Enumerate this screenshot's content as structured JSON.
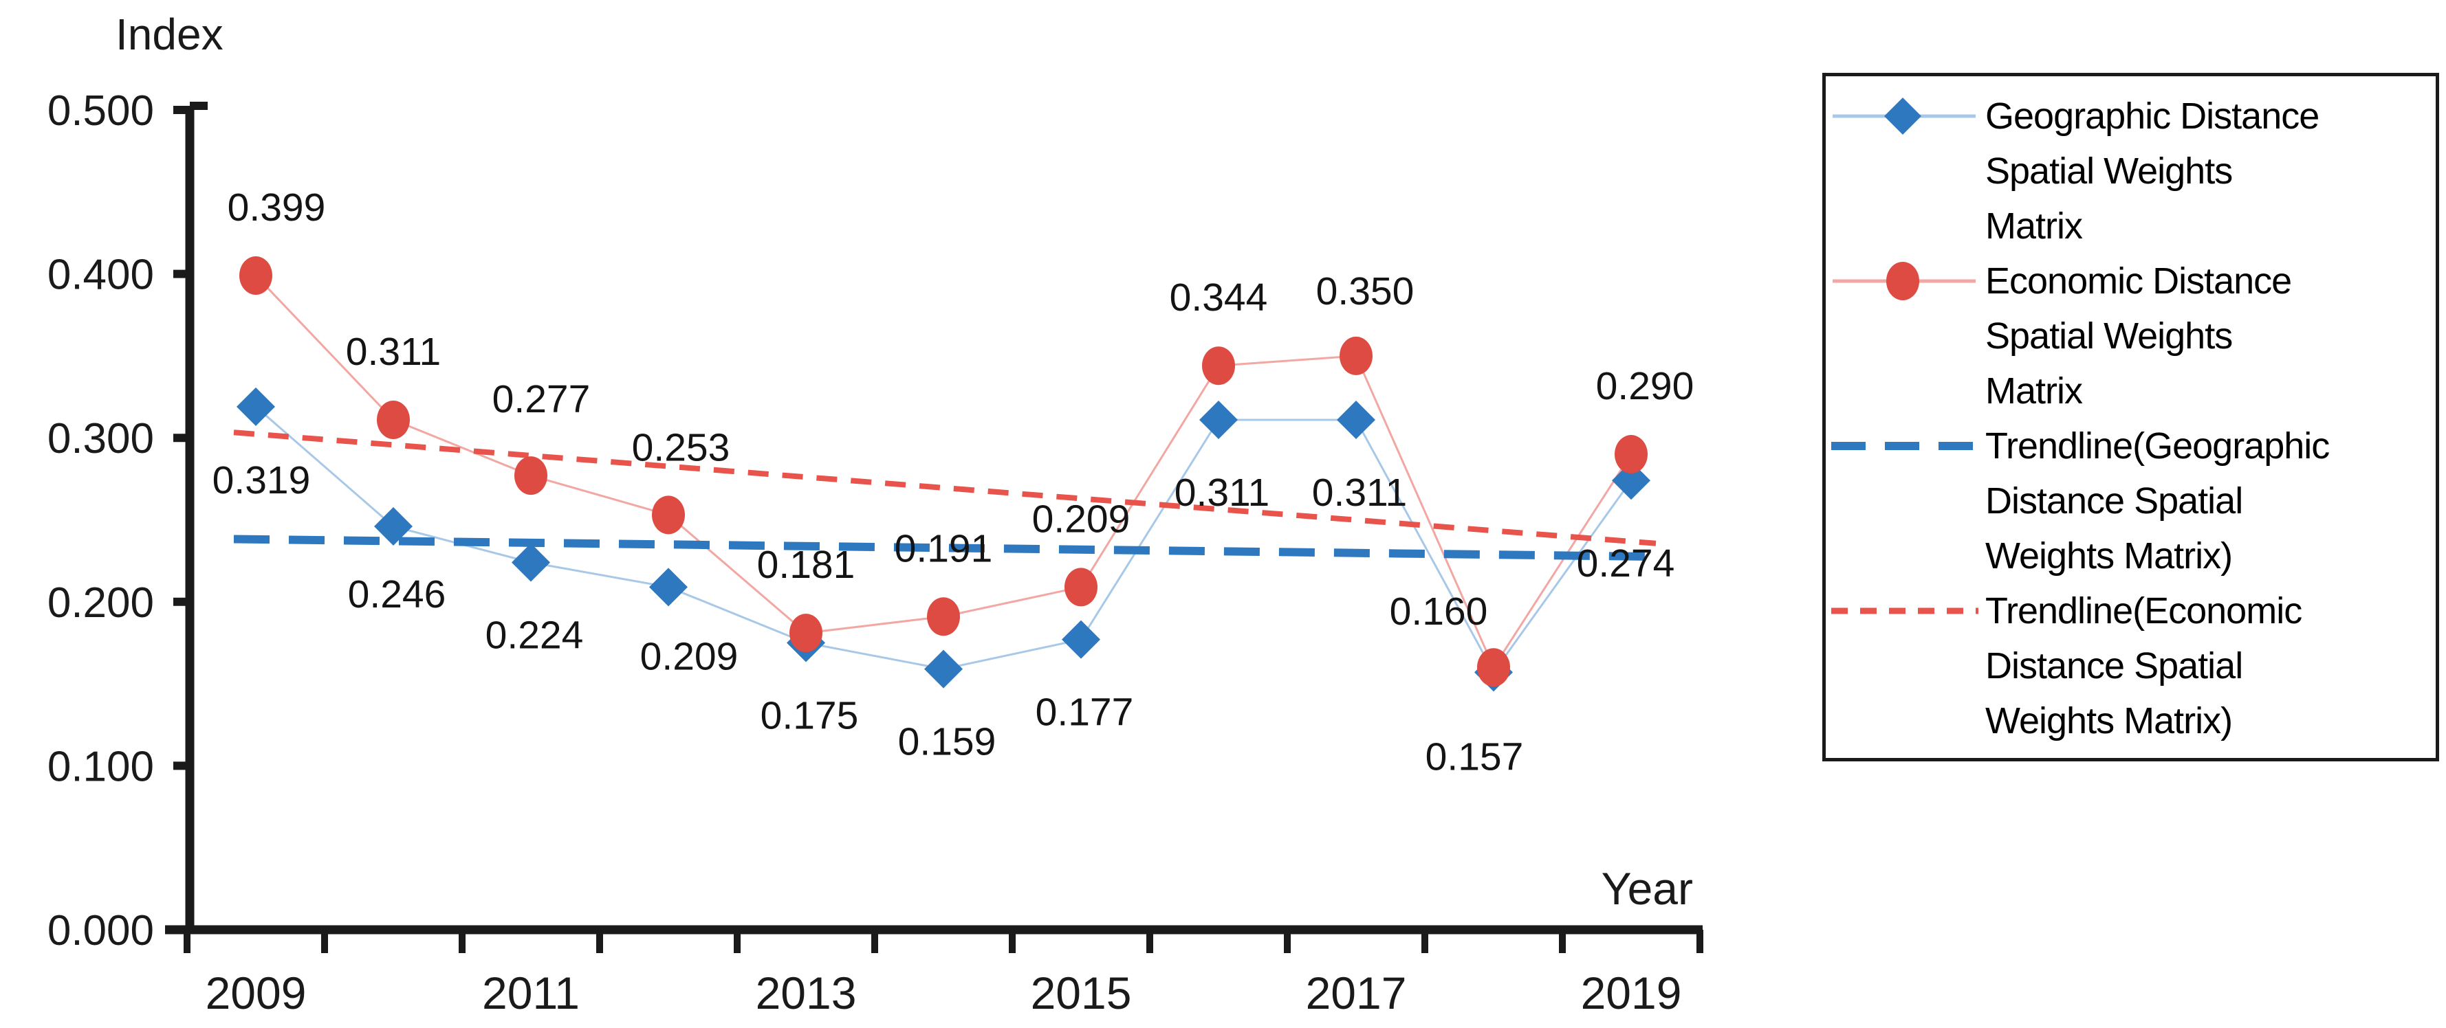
{
  "figure": {
    "y_axis_title": "Index",
    "x_axis_title": "Year"
  },
  "chart_data": {
    "type": "line",
    "x": [
      2009,
      2010,
      2011,
      2012,
      2013,
      2014,
      2015,
      2016,
      2017,
      2018,
      2019
    ],
    "x_tick_labels": [
      "2009",
      "2011",
      "2013",
      "2015",
      "2017",
      "2019"
    ],
    "y_ticks": [
      "0.000",
      "0.100",
      "0.200",
      "0.300",
      "0.400",
      "0.500"
    ],
    "ylim": [
      0,
      0.5
    ],
    "grid": false,
    "legend_position": "right",
    "title": "",
    "xlabel": "Year",
    "ylabel": "Index",
    "data_label_format": "0.000",
    "series": [
      {
        "name": "Geographic Distance Spatial Weights Matrix",
        "marker": "diamond",
        "marker_color": "#2D78BE",
        "line_color": "#A8C8E8",
        "values": [
          0.319,
          0.246,
          0.224,
          0.209,
          0.175,
          0.159,
          0.177,
          0.311,
          0.311,
          0.157,
          0.274
        ]
      },
      {
        "name": "Economic Distance Spatial Weights Matrix",
        "marker": "circle",
        "marker_color": "#DE4B43",
        "line_color": "#F2A7A2",
        "values": [
          0.399,
          0.311,
          0.277,
          0.253,
          0.181,
          0.191,
          0.209,
          0.344,
          0.35,
          0.16,
          0.29
        ]
      }
    ],
    "trendlines": [
      {
        "name": "Trendline(Geographic Distance Spatial Weights Matrix)",
        "fit_of": 0,
        "style": "long-dash",
        "color": "#2D78BE"
      },
      {
        "name": "Trendline(Economic Distance Spatial Weights Matrix)",
        "fit_of": 1,
        "style": "short-dash",
        "color": "#E8534B"
      }
    ],
    "axis_color": "#1a1a1a",
    "label_color": "#141414"
  },
  "legend": {
    "items": [
      {
        "symbol": "line-diamond",
        "lines": [
          "Geographic Distance",
          "Spatial Weights",
          "Matrix"
        ]
      },
      {
        "symbol": "line-circle",
        "lines": [
          "Economic Distance",
          "Spatial Weights",
          "Matrix"
        ]
      },
      {
        "symbol": "blue-dash",
        "lines": [
          "Trendline(Geographic",
          "Distance Spatial",
          "Weights Matrix)"
        ]
      },
      {
        "symbol": "red-dash",
        "lines": [
          "Trendline(Economic",
          "Distance Spatial",
          "Weights Matrix)"
        ]
      }
    ]
  }
}
